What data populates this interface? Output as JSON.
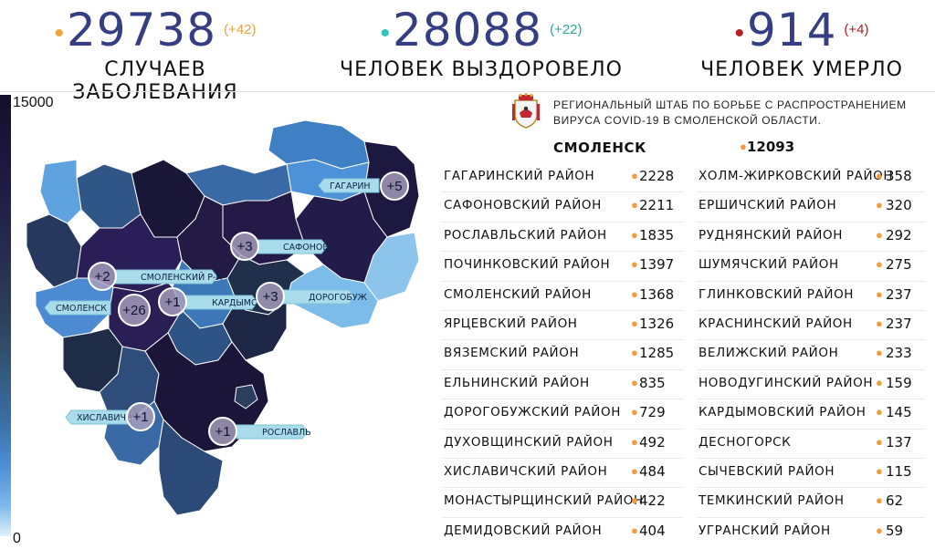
{
  "stats": {
    "cases": {
      "value": "29738",
      "delta": "(+42)",
      "label": "СЛУЧАЕВ ЗАБОЛЕВАНИЯ",
      "dot_color": "#f0a43c",
      "delta_color": "#e9a247"
    },
    "recovered": {
      "value": "28088",
      "delta": "(+22)",
      "label": "ЧЕЛОВЕК ВЫЗДОРОВЕЛО",
      "dot_color": "#2ec4b6",
      "delta_color": "#2aa79b"
    },
    "deaths": {
      "value": "914",
      "delta": "(+4)",
      "label": "ЧЕЛОВЕК УМЕРЛО",
      "dot_color": "#b3202a",
      "delta_color": "#b3202a"
    }
  },
  "scale": {
    "max": "15000",
    "min": "0"
  },
  "headquarters": {
    "line1": "РЕГИОНАЛЬНЫЙ ШТАБ ПО БОРЬБЕ С РАСПРОСТРАНЕНИЕМ",
    "line2": "ВИРУСА COVID-19 В СМОЛЕНСКОЙ ОБЛАСТИ.",
    "logo_icon": "smolensk-coat-of-arms-icon"
  },
  "capital": {
    "name": "СМОЛЕНСК",
    "value": "12093"
  },
  "districts_left": [
    {
      "name": "ГАГАРИНСКИЙ РАЙОН",
      "value": "2228"
    },
    {
      "name": "САФОНОВСКИЙ РАЙОН",
      "value": "2211"
    },
    {
      "name": "РОСЛАВЛЬСКИЙ РАЙОН",
      "value": "1835"
    },
    {
      "name": "ПОЧИНКОВСКИЙ РАЙОН",
      "value": "1397"
    },
    {
      "name": "СМОЛЕНСКИЙ РАЙОН",
      "value": "1368"
    },
    {
      "name": "ЯРЦЕВСКИЙ РАЙОН",
      "value": "1326"
    },
    {
      "name": "ВЯЗЕМСКИЙ РАЙОН",
      "value": "1285"
    },
    {
      "name": "ЕЛЬНИНСКИЙ РАЙОН",
      "value": "835"
    },
    {
      "name": "ДОРОГОБУЖСКИЙ РАЙОН",
      "value": "729"
    },
    {
      "name": "ДУХОВЩИНСКИЙ РАЙОН",
      "value": "492"
    },
    {
      "name": "ХИСЛАВИЧСКИЙ РАЙОН",
      "value": "484"
    },
    {
      "name": "МОНАСТЫРЩИНСКИЙ РАЙОН",
      "value": "422"
    },
    {
      "name": "ДЕМИДОВСКИЙ РАЙОН",
      "value": "404"
    }
  ],
  "districts_right": [
    {
      "name": "ХОЛМ-ЖИРКОВСКИЙ РАЙОН",
      "value": "358"
    },
    {
      "name": "ЕРШИЧСКИЙ РАЙОН",
      "value": "320"
    },
    {
      "name": "РУДНЯНСКИЙ РАЙОН",
      "value": "292"
    },
    {
      "name": "ШУМЯЧСКИЙ РАЙОН",
      "value": "275"
    },
    {
      "name": "ГЛИНКОВСКИЙ РАЙОН",
      "value": "237"
    },
    {
      "name": "КРАСНИНСКИЙ РАЙОН",
      "value": "237"
    },
    {
      "name": "ВЕЛИЖСКИЙ РАЙОН",
      "value": "233"
    },
    {
      "name": "НОВОДУГИНСКИЙ РАЙОН",
      "value": "159"
    },
    {
      "name": "КАРДЫМОВСКИЙ РАЙОН",
      "value": "145"
    },
    {
      "name": "ДЕСНОГОРСК",
      "value": "137"
    },
    {
      "name": "СЫЧЕВСКИЙ РАЙОН",
      "value": "115"
    },
    {
      "name": "ТЕМКИНСКИЙ РАЙОН",
      "value": "62"
    },
    {
      "name": "УГРАНСКИЙ РАЙОН",
      "value": "59"
    }
  ],
  "map_markers": [
    {
      "label": "ГАГАРИН",
      "delta": "+5"
    },
    {
      "label": "САФОНОВО",
      "delta": "+3"
    },
    {
      "label": "СМОЛЕНСКИЙ Р-Н",
      "delta": "+2"
    },
    {
      "label": "КАРДЫМОВО",
      "delta": "+1"
    },
    {
      "label": "ДОРОГОБУЖ",
      "delta": "+3"
    },
    {
      "label": "СМОЛЕНСК",
      "delta": "+26"
    },
    {
      "label": "ХИСЛАВИЧИ",
      "delta": "+1"
    },
    {
      "label": "РОСЛАВЛЬ",
      "delta": "+1"
    }
  ]
}
